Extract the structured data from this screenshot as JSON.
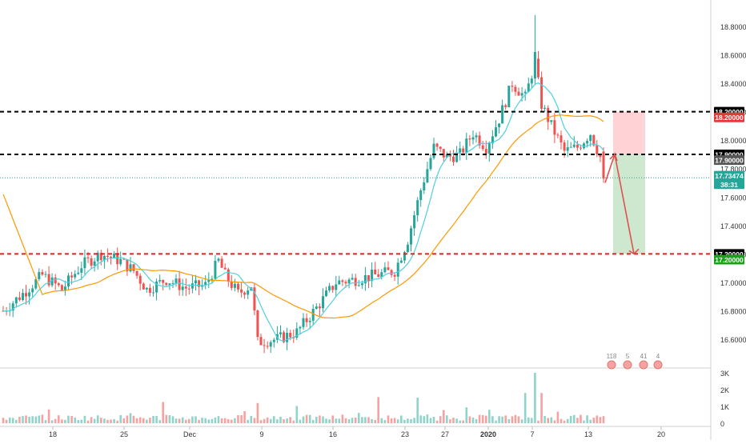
{
  "chart_data": {
    "type": "candlestick",
    "time_axis_labels": [
      "18",
      "25",
      "Dec",
      "9",
      "16",
      "23",
      "27",
      "2020",
      "7",
      "13",
      "20"
    ],
    "price_axis_labels": [
      "18.80000",
      "18.60000",
      "18.40000",
      "18.20000",
      "18.00000",
      "17.80000",
      "17.60000",
      "17.40000",
      "17.20000",
      "17.00000",
      "16.80000",
      "16.60000"
    ],
    "price_range": [
      16.5,
      18.9
    ],
    "volume_axis_labels": [
      "3K",
      "2K",
      "1K",
      "0"
    ],
    "volume_range": [
      0,
      3000
    ],
    "horizontal_levels": [
      {
        "value": 18.2,
        "label": "18.20000",
        "style": "dashed",
        "color": "#000000"
      },
      {
        "value": 17.9,
        "label": "17.90000",
        "style": "dashed",
        "color": "#000000"
      },
      {
        "value": 17.2,
        "label": "17.20000",
        "style": "dashed",
        "color": "#e02020"
      }
    ],
    "price_tags": [
      {
        "value": 18.2,
        "label": "18.20000",
        "bg": "#000000",
        "color": "#ffffff"
      },
      {
        "value": 18.16,
        "label": "18.20000",
        "bg": "#e53935",
        "color": "#ffffff"
      },
      {
        "value": 17.9,
        "label": "17.90000",
        "bg": "#000000",
        "color": "#ffffff"
      },
      {
        "value": 17.86,
        "label": "17.90000",
        "bg": "#555555",
        "color": "#ffffff"
      },
      {
        "value": 17.75,
        "label": "17.73474",
        "bg": "#26a69a",
        "color": "#ffffff"
      },
      {
        "value": 17.69,
        "label": "38:31",
        "bg": "#26a69a",
        "color": "#ffffff"
      },
      {
        "value": 17.2,
        "label": "17.20000",
        "bg": "#000000",
        "color": "#ffffff"
      },
      {
        "value": 17.16,
        "label": "17.20000",
        "bg": "#1aa01a",
        "color": "#ffffff"
      }
    ],
    "current_price": 17.73474,
    "countdown": "38:31",
    "position": {
      "entry": 17.9,
      "stop_loss": 18.2,
      "take_profit": 17.2,
      "risk_color": "#ffcdd2",
      "reward_color": "#c8e6c9"
    },
    "badges": [
      "118",
      "5",
      "41",
      "4"
    ],
    "colors": {
      "up": "#26a69a",
      "down": "#ef5350",
      "ma_fast": "#4dd0e1",
      "ma_slow": "#ff9800",
      "arrow": "#e05050"
    }
  }
}
